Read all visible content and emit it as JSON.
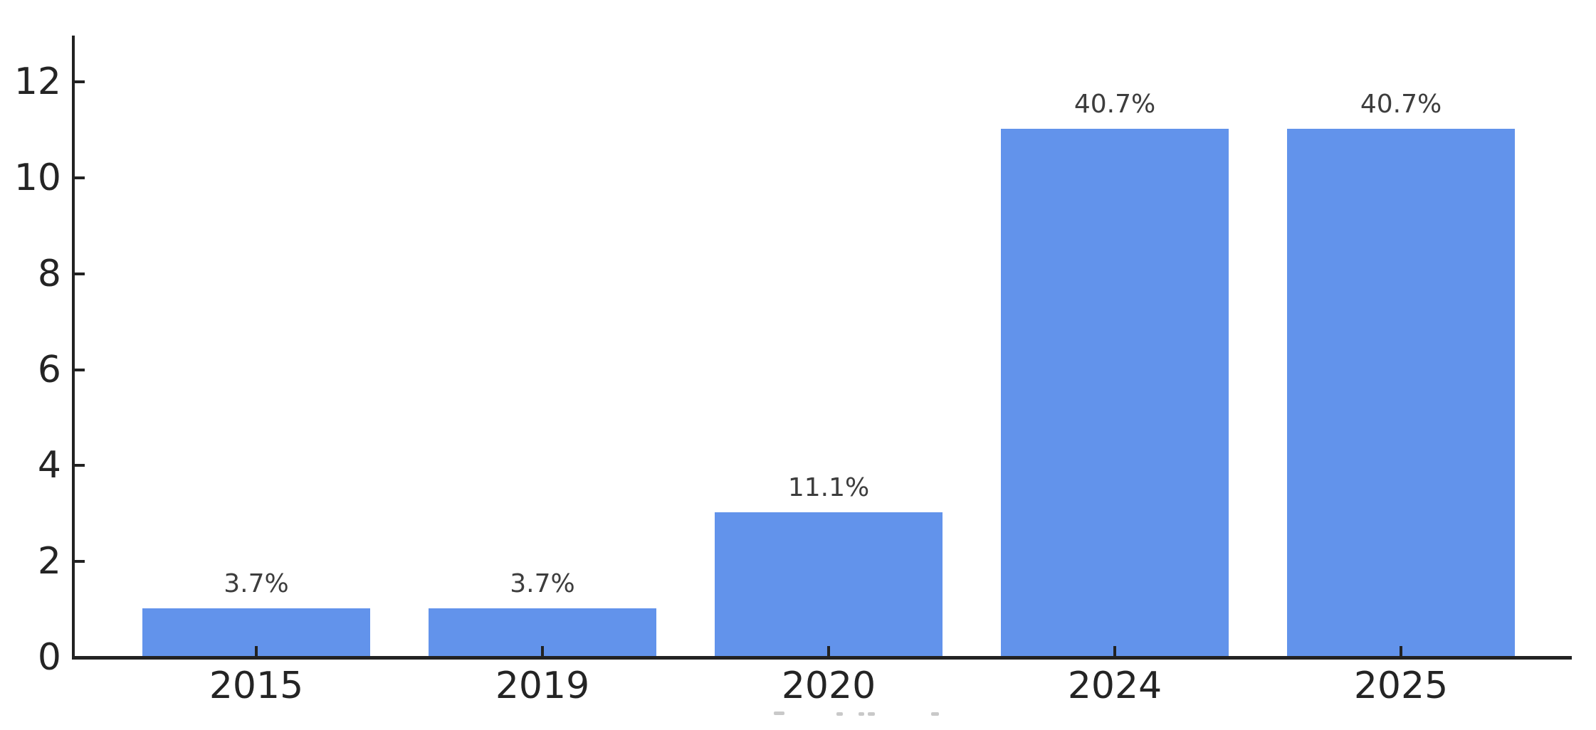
{
  "chart_data": {
    "type": "bar",
    "title": "",
    "xlabel": "",
    "ylabel": "",
    "categories": [
      "2015",
      "2019",
      "2020",
      "2024",
      "2025"
    ],
    "values": [
      1,
      1,
      3,
      11,
      11
    ],
    "bar_labels": [
      "3.7%",
      "3.7%",
      "11.1%",
      "40.7%",
      "40.7%"
    ],
    "ylim": [
      0,
      13
    ],
    "yticks": [
      0,
      2,
      4,
      6,
      8,
      10,
      12
    ],
    "grid": false,
    "legend": false,
    "bar_color": "#6293EB",
    "axis_color": "#222222",
    "tick_label_color": "#242424",
    "bar_label_color": "#3d3d3d"
  }
}
